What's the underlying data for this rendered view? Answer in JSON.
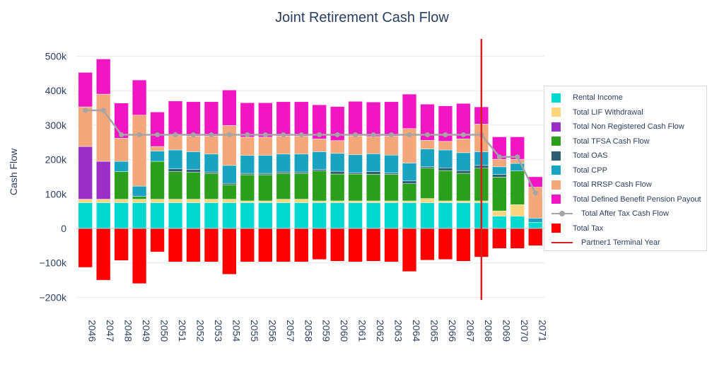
{
  "chart_data": {
    "type": "bar",
    "barmode": "relative",
    "title": "Joint Retirement Cash Flow",
    "ylabel": "Cash Flow",
    "xlabel": "",
    "ylim": [
      -210000,
      560000
    ],
    "yticks": [
      -200000,
      -100000,
      0,
      100000,
      200000,
      300000,
      400000,
      500000
    ],
    "ytick_labels": [
      "−200k",
      "−100k",
      "0",
      "100k",
      "200k",
      "300k",
      "400k",
      "500k"
    ],
    "grid": true,
    "legend_placement": "right",
    "categories": [
      "2046",
      "2047",
      "2048",
      "2049",
      "2050",
      "2051",
      "2052",
      "2053",
      "2054",
      "2055",
      "2056",
      "2057",
      "2058",
      "2059",
      "2060",
      "2061",
      "2062",
      "2063",
      "2064",
      "2065",
      "2066",
      "2067",
      "2068",
      "2069",
      "2070",
      "2071"
    ],
    "series": [
      {
        "name": "Rental Income",
        "color": "#00d8d0",
        "values": [
          75000,
          75000,
          75000,
          75000,
          75000,
          75000,
          75000,
          75000,
          75000,
          75000,
          75000,
          75000,
          75000,
          75000,
          75000,
          75000,
          75000,
          75000,
          75000,
          75000,
          75000,
          75000,
          75000,
          36000,
          36000,
          18000
        ]
      },
      {
        "name": "Total LIF Withdrawal",
        "color": "#fdd57e",
        "values": [
          10000,
          10000,
          10000,
          10000,
          10000,
          10000,
          10000,
          10000,
          10000,
          5000,
          5000,
          10000,
          10000,
          5000,
          5000,
          5000,
          5000,
          5000,
          5000,
          12000,
          5000,
          5000,
          5000,
          15000,
          33000,
          0
        ]
      },
      {
        "name": "Total Non Registered Cash Flow",
        "color": "#9b30c8",
        "values": [
          153000,
          110000,
          0,
          0,
          0,
          0,
          0,
          0,
          0,
          0,
          0,
          0,
          0,
          0,
          0,
          0,
          0,
          0,
          0,
          0,
          0,
          0,
          0,
          0,
          0,
          0
        ]
      },
      {
        "name": "Total TFSA Cash Flow",
        "color": "#2ca01c",
        "values": [
          0,
          0,
          80000,
          8000,
          110000,
          80000,
          78000,
          75000,
          42000,
          76000,
          76000,
          75000,
          75000,
          87000,
          78000,
          78000,
          77000,
          77000,
          50000,
          88000,
          88000,
          80000,
          95000,
          98000,
          98000,
          0
        ]
      },
      {
        "name": "Total OAS",
        "color": "#2e5f70",
        "values": [
          0,
          0,
          0,
          0,
          0,
          8000,
          8000,
          4000,
          4000,
          4000,
          4000,
          4000,
          4000,
          4000,
          8000,
          4000,
          8000,
          4000,
          8000,
          4000,
          8000,
          8000,
          8000,
          8000,
          0,
          0
        ]
      },
      {
        "name": "Total CPP",
        "color": "#1aa3c0",
        "values": [
          0,
          0,
          30000,
          30000,
          30000,
          55000,
          52000,
          52000,
          52000,
          52000,
          52000,
          52000,
          52000,
          52000,
          52000,
          52000,
          52000,
          52000,
          52000,
          52000,
          52000,
          52000,
          40000,
          22000,
          22000,
          12000
        ]
      },
      {
        "name": "Total RRSP Cash Flow",
        "color": "#f4a77a",
        "values": [
          115000,
          195000,
          67000,
          206000,
          13000,
          42000,
          45000,
          52000,
          116000,
          53000,
          53000,
          52000,
          52000,
          37000,
          37000,
          55000,
          50000,
          55000,
          100000,
          25000,
          25000,
          40000,
          80000,
          22000,
          12000,
          90000
        ]
      },
      {
        "name": "Total Defined Benefit Pension Payout",
        "color": "#f215c2",
        "values": [
          100000,
          102000,
          102000,
          102000,
          100000,
          100000,
          100000,
          100000,
          103000,
          100000,
          100000,
          100000,
          100000,
          99000,
          99000,
          100000,
          100000,
          100000,
          100000,
          105000,
          103000,
          103000,
          50000,
          65000,
          65000,
          30000
        ]
      },
      {
        "name": "Total Tax",
        "color": "#ff0000",
        "values": [
          -113000,
          -150000,
          -93000,
          -160000,
          -68000,
          -97000,
          -97000,
          -97000,
          -133000,
          -97000,
          -97000,
          -97000,
          -97000,
          -90000,
          -95000,
          -97000,
          -95000,
          -97000,
          -125000,
          -92000,
          -90000,
          -95000,
          -83000,
          -58000,
          -58000,
          -50000
        ]
      }
    ],
    "line": {
      "name": "Total After Tax Cash Flow",
      "color": "#a5a5a5",
      "values": [
        343000,
        343000,
        272000,
        272000,
        272000,
        272000,
        272000,
        272000,
        272000,
        272000,
        272000,
        272000,
        272000,
        272000,
        272000,
        272000,
        272000,
        272000,
        272000,
        272000,
        272000,
        272000,
        272000,
        208000,
        208000,
        103000
      ]
    },
    "vline": {
      "name": "Partner1 Terminal Year",
      "color": "#d62020",
      "x": "2068",
      "offset": 0.5
    },
    "legend_order": [
      "Rental Income",
      "Total LIF Withdrawal",
      "Total Non Registered Cash Flow",
      "Total TFSA Cash Flow",
      "Total OAS",
      "Total CPP",
      "Total RRSP Cash Flow",
      "Total Defined Benefit Pension Payout",
      "Total After Tax Cash Flow",
      "Total Tax",
      "Partner1 Terminal Year"
    ]
  }
}
